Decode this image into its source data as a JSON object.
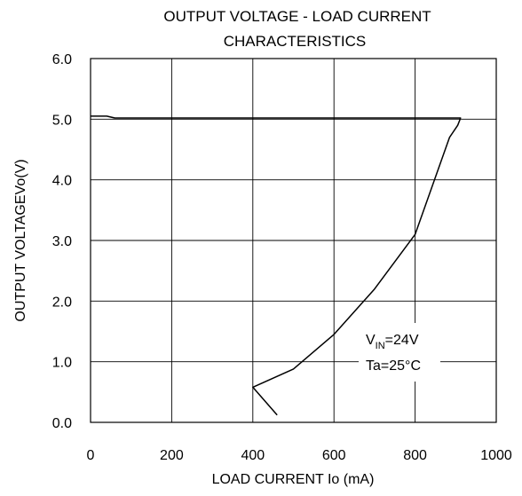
{
  "chart_data": {
    "type": "line",
    "title_lines": [
      "OUTPUT VOLTAGE  -  LOAD CURRENT",
      "CHARACTERISTICS"
    ],
    "xlabel": "LOAD CURRENT  Io (mA)",
    "ylabel": "OUTPUT VOLTAGEVo(V)",
    "xlim": [
      0,
      1000
    ],
    "ylim": [
      0,
      6
    ],
    "xticks": [
      0,
      200,
      400,
      600,
      800,
      1000
    ],
    "xtick_labels": [
      "0",
      "200",
      "400",
      "600",
      "800",
      "1000"
    ],
    "yticks": [
      0,
      1,
      2,
      3,
      4,
      5,
      6
    ],
    "ytick_labels": [
      "0.0",
      "1.0",
      "2.0",
      "3.0",
      "4.0",
      "5.0",
      "6.0"
    ],
    "grid": true,
    "series": [
      {
        "color": "#000000",
        "x": [
          0,
          40,
          60,
          200,
          400,
          600,
          800,
          900,
          912,
          905,
          885,
          800,
          700,
          600,
          500,
          400,
          460
        ],
        "y": [
          5.05,
          5.05,
          5.02,
          5.02,
          5.02,
          5.02,
          5.02,
          5.02,
          5.02,
          4.9,
          4.7,
          3.1,
          2.2,
          1.45,
          0.88,
          0.58,
          0.12
        ]
      }
    ],
    "annotations": {
      "vin_main": "V",
      "vin_sub": "IN",
      "vin_value": "=24V",
      "ta": "Ta=25°C",
      "position": "lower-right"
    }
  }
}
